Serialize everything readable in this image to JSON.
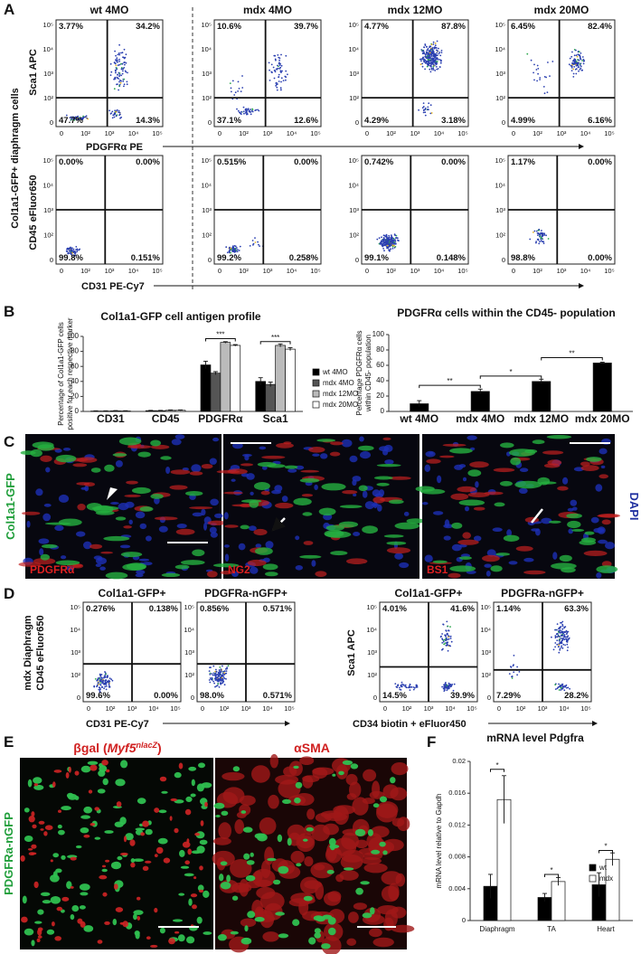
{
  "panel_a": {
    "letter": "A",
    "columns": [
      "wt 4MO",
      "mdx 4MO",
      "mdx 12MO",
      "mdx 20MO"
    ],
    "row_label": "Col1a1-GFP+ diaphragm cells",
    "top_y_label": "Sca1 APC",
    "top_x_label": "PDGFRα PE",
    "bottom_y_label": "CD45 eFluor650",
    "bottom_x_label": "CD31 PE-Cy7",
    "ticks": [
      "0",
      "10²",
      "10³",
      "10⁴",
      "10⁵"
    ],
    "top_quadrants": [
      [
        "3.77%",
        "34.2%",
        "47.7%",
        "14.3%"
      ],
      [
        "10.6%",
        "39.7%",
        "37.1%",
        "12.6%"
      ],
      [
        "4.77%",
        "87.8%",
        "4.29%",
        "3.18%"
      ],
      [
        "6.45%",
        "82.4%",
        "4.99%",
        "6.16%"
      ]
    ],
    "bottom_quadrants": [
      [
        "0.00%",
        "0.00%",
        "99.8%",
        "0.151%"
      ],
      [
        "0.515%",
        "0.00%",
        "99.2%",
        "0.258%"
      ],
      [
        "0.742%",
        "0.00%",
        "99.1%",
        "0.148%"
      ],
      [
        "1.17%",
        "0.00%",
        "98.8%",
        "0.00%"
      ]
    ]
  },
  "panel_b": {
    "letter": "B",
    "left": {
      "type": "bar",
      "title": "Col1a1-GFP cell antigen profile",
      "ylabel": [
        "Percentage of Col1a1-GFP cells",
        "positive for each respective marker"
      ],
      "categories": [
        "CD31",
        "CD45",
        "PDGFRα",
        "Sca1"
      ],
      "series": [
        {
          "name": "wt 4MO",
          "color": "#000000",
          "values": [
            0.5,
            1,
            62,
            40
          ],
          "errors": [
            0.3,
            0.4,
            5,
            5
          ]
        },
        {
          "name": "mdx 4MO",
          "color": "#555555",
          "values": [
            0.5,
            1,
            51,
            36
          ],
          "errors": [
            0.3,
            0.4,
            2,
            3
          ]
        },
        {
          "name": "mdx 12MO",
          "color": "#bbbbbb",
          "values": [
            0.8,
            1.5,
            92,
            88
          ],
          "errors": [
            0.3,
            0.5,
            1,
            2
          ]
        },
        {
          "name": "mdx 20MO",
          "color": "#ffffff",
          "values": [
            0.6,
            1.5,
            88,
            83
          ],
          "errors": [
            0.3,
            0.5,
            1,
            2
          ]
        }
      ],
      "ylim": [
        0,
        100
      ],
      "yticks": [
        0,
        20,
        40,
        60,
        80,
        100
      ],
      "annotations": [
        "***",
        "***"
      ]
    },
    "right": {
      "type": "bar",
      "title": "PDGFRα cells within the CD45- population",
      "ylabel": [
        "Percentage PDGFRα cells",
        "within CD45- population"
      ],
      "categories": [
        "wt 4MO",
        "mdx 4MO",
        "mdx 12MO",
        "mdx 20MO"
      ],
      "series": [
        {
          "color": "#000000",
          "values": [
            10,
            26,
            39,
            63
          ],
          "errors": [
            4,
            3,
            3,
            1
          ]
        }
      ],
      "ylim": [
        0,
        100
      ],
      "yticks": [
        0,
        20,
        40,
        60,
        80,
        100
      ],
      "annotations": [
        "**",
        "*",
        "**"
      ]
    }
  },
  "panel_c": {
    "letter": "C",
    "side_left": "Col1a1-GFP",
    "side_right": "DAPI",
    "images": [
      "PDGFRα",
      "NG2",
      "BS1"
    ]
  },
  "panel_d": {
    "letter": "D",
    "row_label": [
      "mdx Diaphragm",
      "CD45 eFluor650"
    ],
    "right_y_label": "Sca1 APC",
    "headers": [
      "Col1a1-GFP+",
      "PDGFRa-nGFP+",
      "Col1a1-GFP+",
      "PDGFRa-nGFP+"
    ],
    "left_x_label": "CD31 PE-Cy7",
    "right_x_label": "CD34 biotin + eFluor450",
    "quadrants": [
      [
        "0.276%",
        "0.138%",
        "99.6%",
        "0.00%"
      ],
      [
        "0.856%",
        "0.571%",
        "98.0%",
        "0.571%"
      ],
      [
        "4.01%",
        "41.6%",
        "14.5%",
        "39.9%"
      ],
      [
        "1.14%",
        "63.3%",
        "7.29%",
        "28.2%"
      ]
    ]
  },
  "panel_e": {
    "letter": "E",
    "side_label": "PDGFRa-nGFP",
    "left_label": [
      "βgal (",
      "Myf5",
      "nlacZ",
      ")"
    ],
    "right_label": "αSMA"
  },
  "panel_f": {
    "letter": "F",
    "chart": {
      "type": "bar",
      "title": "mRNA level Pdgfra",
      "ylabel": [
        "mRNA level relative to Gapdh"
      ],
      "categories": [
        "Diaphragm",
        "TA",
        "Heart"
      ],
      "series": [
        {
          "name": "wt",
          "color": "#000000",
          "values": [
            0.0043,
            0.0029,
            0.0045
          ],
          "errors": [
            0.0015,
            0.0005,
            0.0015
          ]
        },
        {
          "name": "mdx",
          "color": "#ffffff",
          "values": [
            0.0152,
            0.0049,
            0.0077
          ],
          "errors": [
            0.003,
            0.0005,
            0.0008
          ]
        }
      ],
      "ylim": [
        0,
        0.02
      ],
      "yticks": [
        0,
        0.004,
        0.008,
        0.012,
        0.016,
        0.02
      ],
      "annotations": [
        "*",
        "*",
        "*"
      ]
    }
  }
}
